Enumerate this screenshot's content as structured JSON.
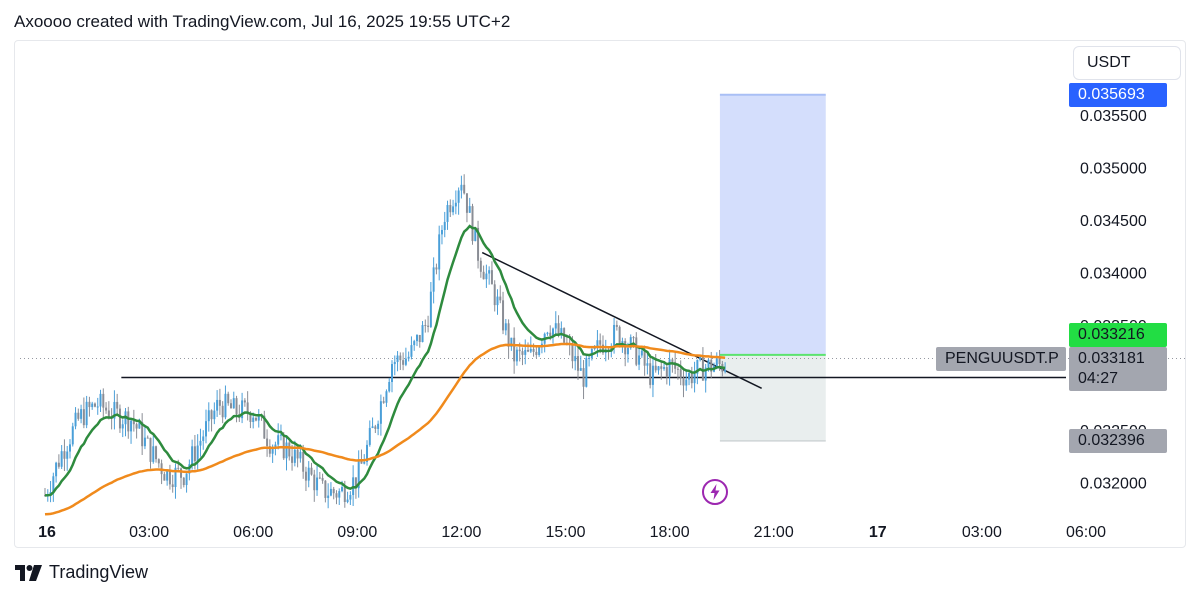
{
  "header": {
    "caption": "Axoooo created with TradingView.com, Jul 16, 2025 19:55 UTC+2"
  },
  "footer": {
    "brand": "TradingView"
  },
  "currency": "USDT",
  "symbol": "PENGUUSDT.P",
  "colors": {
    "candle": "#4a9fd8",
    "candle_bear": "#8a8d95",
    "ma_fast": "#2e8b3e",
    "ma_slow": "#f08a1c",
    "target_zone": "#d4defc",
    "stop_zone": "#e9eeee",
    "target_tag": "#2962ff",
    "entry_tag": "#22dd44",
    "neutral_tag": "#a3a6af",
    "bolt": "#9c27b0"
  },
  "price_tags": {
    "target": "0.035693",
    "entry": "0.033216",
    "last": "0.033181",
    "countdown": "04:27",
    "stop": "0.032396"
  },
  "chart_data": {
    "type": "candlestick",
    "title": "",
    "y_axis": {
      "range": [
        0.0317,
        0.0362
      ],
      "ticks": [
        "0.035500",
        "0.035000",
        "0.034500",
        "0.034000",
        "0.033500",
        "0.032500",
        "0.032000"
      ]
    },
    "x_axis": {
      "ticks": [
        "16",
        "03:00",
        "06:00",
        "09:00",
        "12:00",
        "15:00",
        "18:00",
        "21:00",
        "17",
        "03:00",
        "06:00"
      ]
    },
    "series": [
      {
        "kind": "price",
        "x": [
          0.0,
          0.5,
          1.0,
          1.5,
          2.0,
          2.5,
          3.0,
          3.5,
          4.0,
          4.5,
          5.0,
          5.5,
          6.0,
          6.5,
          7.0,
          7.5,
          8.0,
          8.5,
          9.0,
          9.5,
          10.0,
          10.5,
          11.0,
          11.5,
          12.0,
          12.5,
          13.0,
          13.5,
          14.0,
          14.5,
          15.0,
          15.5,
          16.0,
          16.5,
          17.0,
          17.5,
          18.0,
          18.5,
          19.0,
          19.5,
          20.0
        ],
        "close": [
          0.03188,
          0.0323,
          0.03262,
          0.03275,
          0.03265,
          0.0326,
          0.03232,
          0.03208,
          0.03208,
          0.03242,
          0.03275,
          0.03268,
          0.03268,
          0.03238,
          0.03232,
          0.03212,
          0.03192,
          0.0319,
          0.03204,
          0.03255,
          0.03315,
          0.0332,
          0.03352,
          0.03455,
          0.0349,
          0.03415,
          0.03375,
          0.0332,
          0.0332,
          0.03352,
          0.03332,
          0.033,
          0.03332,
          0.03342,
          0.03325,
          0.033,
          0.03312,
          0.033,
          0.0331,
          0.03312,
          0.03318
        ]
      },
      {
        "kind": "moving-average-fast"
      },
      {
        "kind": "moving-average-slow"
      }
    ],
    "annotations": {
      "horizontal_line_price": 0.033,
      "descending_trendline": [
        [
          12.6,
          0.03419
        ],
        [
          19.5,
          0.03304
        ]
      ],
      "position": {
        "entry": 0.033216,
        "target": 0.035693,
        "stop": 0.032396,
        "x_start": 19.45,
        "x_end": 22.5
      },
      "last_price_line": 0.033181
    }
  }
}
